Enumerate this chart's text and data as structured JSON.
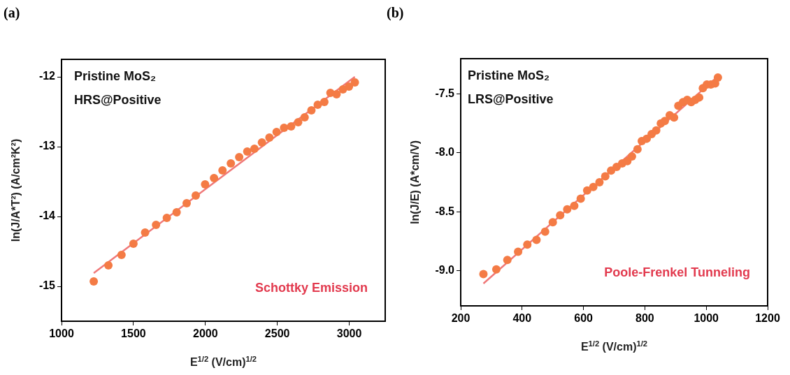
{
  "chart_data": [
    {
      "type": "scatter",
      "title": "(a)",
      "xlabel": "E$^{1/2}$ (V/cm)$^{1/2}$",
      "ylabel": "ln(J/A*T²) (A/cm²K²)",
      "xlim": [
        1000,
        3250
      ],
      "xticks": [
        1000,
        1500,
        2000,
        2500,
        3000
      ],
      "ylim": [
        -15.5,
        -11.75
      ],
      "yticks": [
        -15,
        -14,
        -13,
        -12
      ],
      "grid": false,
      "legend": false,
      "marker": "circle",
      "annotations": [
        "Pristine MoS₂",
        "HRS@Positive",
        "Schottky Emission"
      ],
      "series": [
        {
          "color": "#f47b45",
          "x": [
            1224,
            1326,
            1417,
            1500,
            1581,
            1657,
            1732,
            1800,
            1870,
            1933,
            1998,
            2060,
            2119,
            2177,
            2235,
            2291,
            2341,
            2393,
            2445,
            2495,
            2547,
            2596,
            2645,
            2690,
            2737,
            2781,
            2827,
            2869,
            2912,
            2956,
            2998,
            3039
          ],
          "values": [
            -14.93,
            -14.7,
            -14.55,
            -14.39,
            -14.23,
            -14.12,
            -14.02,
            -13.94,
            -13.81,
            -13.7,
            -13.54,
            -13.45,
            -13.34,
            -13.24,
            -13.15,
            -13.07,
            -13.03,
            -12.94,
            -12.87,
            -12.79,
            -12.73,
            -12.71,
            -12.65,
            -12.58,
            -12.48,
            -12.4,
            -12.36,
            -12.23,
            -12.25,
            -12.18,
            -12.14,
            -12.08
          ]
        },
        {
          "type": "line",
          "color": "#f07878",
          "marker": "none",
          "x": [
            1224,
            3039
          ],
          "values": [
            -14.81,
            -12.0
          ]
        }
      ]
    },
    {
      "type": "scatter",
      "title": "(b)",
      "xlabel": "E$^{1/2}$ (V/cm)$^{1/2}$",
      "ylabel": "ln(J/E) (A*cm/V)",
      "xlim": [
        200,
        1200
      ],
      "xticks": [
        200,
        400,
        600,
        800,
        1000,
        1200
      ],
      "ylim": [
        -9.3,
        -7.2
      ],
      "yticks": [
        {
          "value": -9,
          "label": "-9.0"
        },
        -8.5,
        {
          "value": -8,
          "label": "-8.0"
        },
        -7.5
      ],
      "grid": false,
      "legend": false,
      "marker": "circle",
      "annotations": [
        "Pristine MoS₂",
        "LRS@Positive",
        "Poole-Frenkel Tunneling"
      ],
      "series": [
        {
          "color": "#f47b45",
          "x": [
            274,
            316,
            352,
            387,
            417,
            447,
            475,
            500,
            524,
            547,
            570,
            591,
            612,
            632,
            652,
            671,
            690,
            708,
            726,
            743,
            758,
            776,
            790,
            806,
            822,
            837,
            852,
            865,
            881,
            895,
            909,
            924,
            938,
            951,
            964,
            977,
            989,
            1002,
            1015,
            1029,
            1038
          ],
          "values": [
            -9.03,
            -8.99,
            -8.91,
            -8.84,
            -8.78,
            -8.74,
            -8.67,
            -8.59,
            -8.53,
            -8.48,
            -8.45,
            -8.39,
            -8.32,
            -8.29,
            -8.25,
            -8.2,
            -8.15,
            -8.12,
            -8.09,
            -8.07,
            -8.03,
            -7.97,
            -7.9,
            -7.88,
            -7.84,
            -7.81,
            -7.75,
            -7.73,
            -7.68,
            -7.7,
            -7.6,
            -7.57,
            -7.55,
            -7.57,
            -7.55,
            -7.53,
            -7.45,
            -7.42,
            -7.42,
            -7.41,
            -7.36
          ]
        },
        {
          "type": "line",
          "color": "#f07878",
          "marker": "none",
          "x": [
            274,
            1038
          ],
          "values": [
            -9.11,
            -7.35
          ]
        }
      ]
    }
  ]
}
